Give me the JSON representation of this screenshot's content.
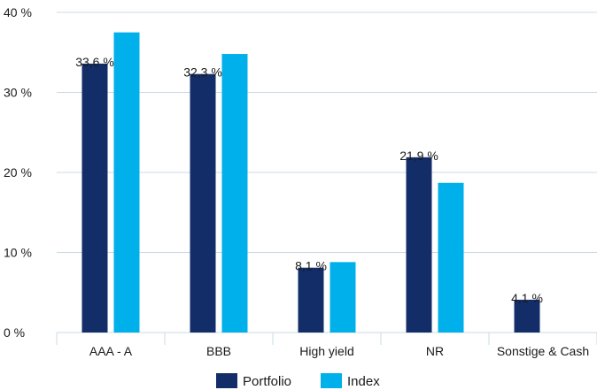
{
  "chart_data": {
    "type": "bar",
    "categories": [
      "AAA - A",
      "BBB",
      "High yield",
      "NR",
      "Sonstige & Cash"
    ],
    "series": [
      {
        "name": "Portfolio",
        "values": [
          33.6,
          32.3,
          8.1,
          21.9,
          4.1
        ],
        "color": "#132d69",
        "data_labels": [
          "33,6 %",
          "32,3 %",
          "8,1 %",
          "21,9 %",
          "4,1 %"
        ]
      },
      {
        "name": "Index",
        "values": [
          37.5,
          34.8,
          8.8,
          18.7,
          0
        ],
        "color": "#00b0ea"
      }
    ],
    "ylim": [
      0,
      40
    ],
    "yticks": [
      0,
      10,
      20,
      30,
      40
    ],
    "ytick_labels": [
      "0 %",
      "10 %",
      "20 %",
      "30 %",
      "40 %"
    ],
    "grid": true,
    "gridline_color": "#c9dbe4",
    "legend_position": "bottom-center"
  }
}
